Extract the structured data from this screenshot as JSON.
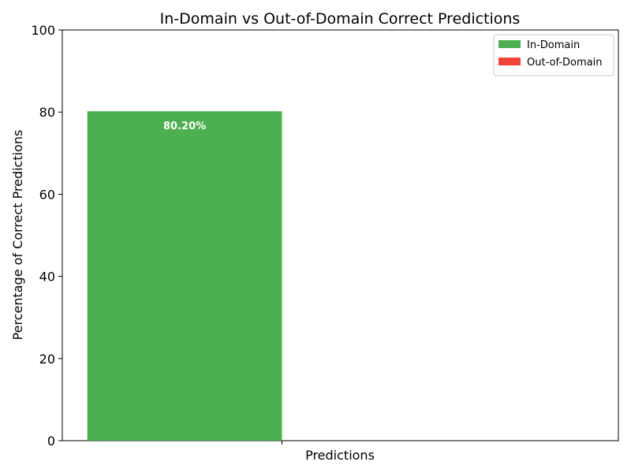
{
  "chart_data": {
    "type": "bar",
    "title": "In-Domain vs Out-of-Domain Correct Predictions",
    "xlabel": "Predictions",
    "ylabel": "Percentage of Correct Predictions",
    "ylim": [
      0,
      100
    ],
    "yticks": [
      0,
      20,
      40,
      60,
      80,
      100
    ],
    "categories": [
      "Predictions"
    ],
    "series": [
      {
        "name": "In-Domain",
        "values": [
          80.2
        ],
        "color": "#4caf50",
        "label": "80.20%"
      },
      {
        "name": "Out-of-Domain",
        "values": [
          0
        ],
        "color": "#f44336",
        "label": ""
      }
    ],
    "legend": "top-right",
    "grid": false
  }
}
